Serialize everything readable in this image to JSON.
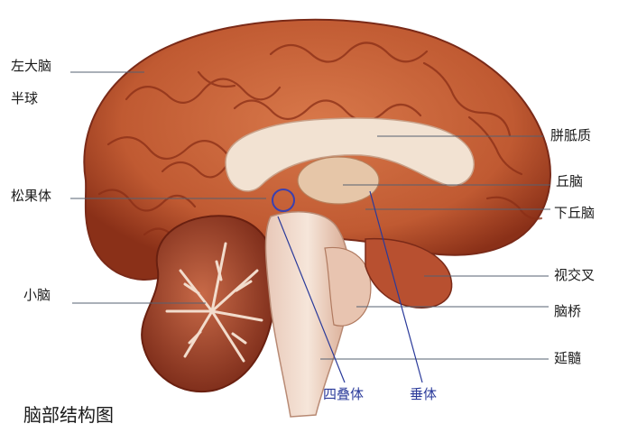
{
  "labels": {
    "left_hemisphere_line1": "左大脑",
    "left_hemisphere_line2": "半球",
    "corpus_callosum": "胼胝质",
    "thalamus": "丘脑",
    "pineal_body": "松果体",
    "hypothalamus": "下丘脑",
    "optic_chiasm": "视交叉",
    "cerebellum": "小脑",
    "pons": "脑桥",
    "medulla": "延髓",
    "corpora_quadrigemina": "四叠体",
    "pituitary": "垂体"
  },
  "caption": "脑部结构图",
  "colors": {
    "cortex": "#c8643a",
    "cortex_dark": "#8a3018",
    "white_matter": "#f2e2d2",
    "label_line": "#556070",
    "blue_label": "#2a3a9a"
  }
}
